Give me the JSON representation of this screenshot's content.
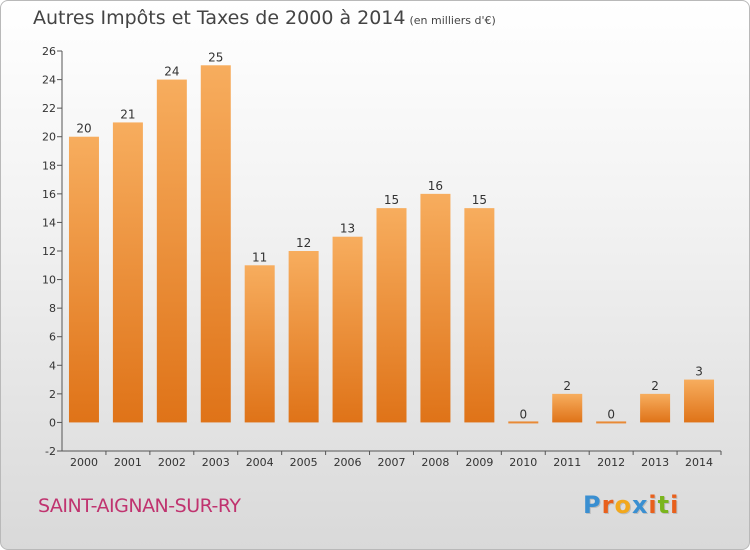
{
  "title": "Autres Impôts et Taxes de 2000 à 2014",
  "subtitle": "(en milliers d'€)",
  "commune": "SAINT-AIGNAN-SUR-RY",
  "logo": {
    "letters": [
      "P",
      "r",
      "o",
      "x",
      "i",
      "t",
      "i"
    ],
    "colors": [
      "#3a8fd1",
      "#e8601c",
      "#f2a81d",
      "#3a8fd1",
      "#e8601c",
      "#7ab51d",
      "#e8601c"
    ]
  },
  "colors": {
    "bar_top": "#f7ad5e",
    "bar_bottom": "#df7318",
    "zero_bar": "#e88a36",
    "axis_text": "#333333"
  },
  "chart_data": {
    "type": "bar",
    "categories": [
      "2000",
      "2001",
      "2002",
      "2003",
      "2004",
      "2005",
      "2006",
      "2007",
      "2008",
      "2009",
      "2010",
      "2011",
      "2012",
      "2013",
      "2014"
    ],
    "values": [
      20,
      21,
      24,
      25,
      11,
      12,
      13,
      15,
      16,
      15,
      0,
      2,
      0,
      2,
      3
    ],
    "ylim": [
      -2,
      26
    ],
    "yticks": [
      -2,
      0,
      2,
      4,
      6,
      8,
      10,
      12,
      14,
      16,
      18,
      20,
      22,
      24,
      26
    ],
    "grid": false,
    "data_labels": true
  }
}
